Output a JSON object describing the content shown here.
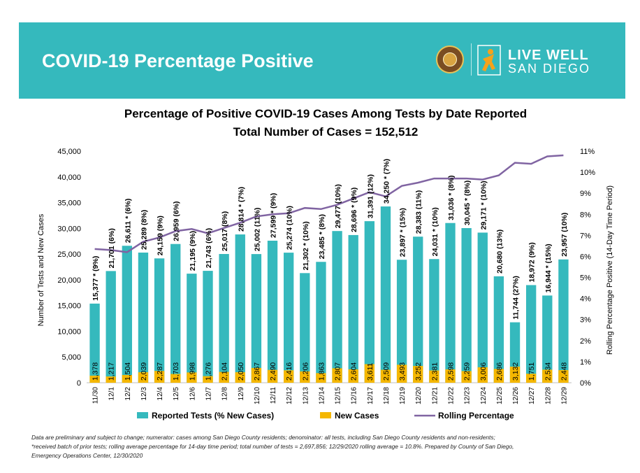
{
  "banner": {
    "title": "COVID-19 Percentage Positive",
    "brand_line1": "LIVE WELL",
    "brand_line2": "SAN DIEGO",
    "color": "#35b9bd"
  },
  "chart_data": {
    "type": "bar",
    "title": "Percentage of Positive COVID-19 Cases Among Tests by Date Reported",
    "subtitle": "Total Number of Cases = 152,512",
    "ylabel": "Number of Tests and New Cases",
    "y2label": "Rolling Percentage Positive (14-Day Time Period)",
    "ylim": [
      0,
      45000
    ],
    "y2lim": [
      0,
      11
    ],
    "yticks": [
      "0",
      "5,000",
      "10,000",
      "15,000",
      "20,000",
      "25,000",
      "30,000",
      "35,000",
      "40,000",
      "45,000"
    ],
    "y2ticks": [
      "0%",
      "1%",
      "2%",
      "3%",
      "4%",
      "5%",
      "6%",
      "7%",
      "8%",
      "9%",
      "10%",
      "11%"
    ],
    "categories": [
      "11/30",
      "12/1",
      "12/2",
      "12/3",
      "12/4",
      "12/5",
      "12/6",
      "12/7",
      "12/8",
      "12/9",
      "12/10",
      "12/11",
      "12/12",
      "12/13",
      "12/14",
      "12/15",
      "12/16",
      "12/17",
      "12/18",
      "12/19",
      "12/20",
      "12/21",
      "12/22",
      "12/23",
      "12/24",
      "12/25",
      "12/26",
      "12/27",
      "12/28",
      "12/29"
    ],
    "series": [
      {
        "name": "Reported Tests (% New Cases)",
        "color": "#35b9bd",
        "values": [
          15377,
          21701,
          26611,
          25289,
          24159,
          26959,
          21195,
          21743,
          25017,
          28814,
          25002,
          27599,
          25274,
          21302,
          23485,
          29477,
          28696,
          31391,
          34250,
          23897,
          28383,
          24031,
          31036,
          30045,
          29171,
          20680,
          11744,
          18972,
          16944,
          23957
        ],
        "labels": [
          "15,377 * (9%)",
          "21,701 (6%)",
          "26,611 * (6%)",
          "25,289 (8%)",
          "24,159 (9%)",
          "26,959 (6%)",
          "21,195 (9%)",
          "21,743 (6%)",
          "25,017 (8%)",
          "28,814 * (7%)",
          "25,002 (11%)",
          "27,599 * (9%)",
          "25,274 (10%)",
          "21,302 * (10%)",
          "23,485 * (8%)",
          "29,477 (10%)",
          "28,696 * (9%)",
          "31,391 (12%)",
          "34,250 * (7%)",
          "23,897 * (15%)",
          "28,383 (11%)",
          "24,031 * (10%)",
          "31,036 * (8%)",
          "30,045 * (8%)",
          "29,171 * (10%)",
          "20,680 (13%)",
          "11,744 (27%)",
          "18,972 (9%)",
          "16,944 * (15%)",
          "23,957 (10%)"
        ]
      },
      {
        "name": "New Cases",
        "color": "#f5b700",
        "values": [
          1378,
          1217,
          1504,
          2039,
          2287,
          1703,
          1998,
          1276,
          2104,
          2050,
          2867,
          2490,
          2416,
          2206,
          1863,
          2807,
          2604,
          3611,
          2509,
          3493,
          3252,
          2381,
          2598,
          2259,
          3006,
          2686,
          3132,
          1751,
          2534,
          2448
        ],
        "labels": [
          "1,378",
          "1,217",
          "1,504",
          "2,039",
          "2,287",
          "1,703",
          "1,998",
          "1,276",
          "2,104",
          "2,050",
          "2,867",
          "2,490",
          "2,416",
          "2,206",
          "1,863",
          "2,807",
          "2,604",
          "3,611",
          "2,509",
          "3,493",
          "3,252",
          "2,381",
          "2,598",
          "2,259",
          "3,006",
          "2,686",
          "3,132",
          "1,751",
          "2,534",
          "2,448"
        ]
      },
      {
        "name": "Rolling Percentage",
        "color": "#8064a2",
        "axis": "y2",
        "values": [
          6.35,
          6.3,
          6.2,
          6.7,
          6.9,
          7.2,
          7.3,
          7.1,
          7.35,
          7.6,
          7.9,
          8.0,
          8.05,
          8.3,
          8.25,
          8.45,
          8.75,
          9.05,
          8.85,
          9.35,
          9.5,
          9.7,
          9.7,
          9.7,
          9.65,
          9.85,
          10.45,
          10.4,
          10.75,
          10.8
        ]
      }
    ],
    "legend_position": "bottom",
    "grid": false
  },
  "footnote": {
    "line1": "Data are preliminary and subject to change; numerator: cases among San Diego County residents; denominator: all tests, including San Diego County residents and non-residents;",
    "line2": "*received batch of prior tests; rolling average percentage for 14-day time period; total number of tests = 2,697,856; 12/29/2020 rolling average = 10.8%. Prepared by County of San Diego,",
    "line3": "Emergency Operations Center, 12/30/2020"
  }
}
